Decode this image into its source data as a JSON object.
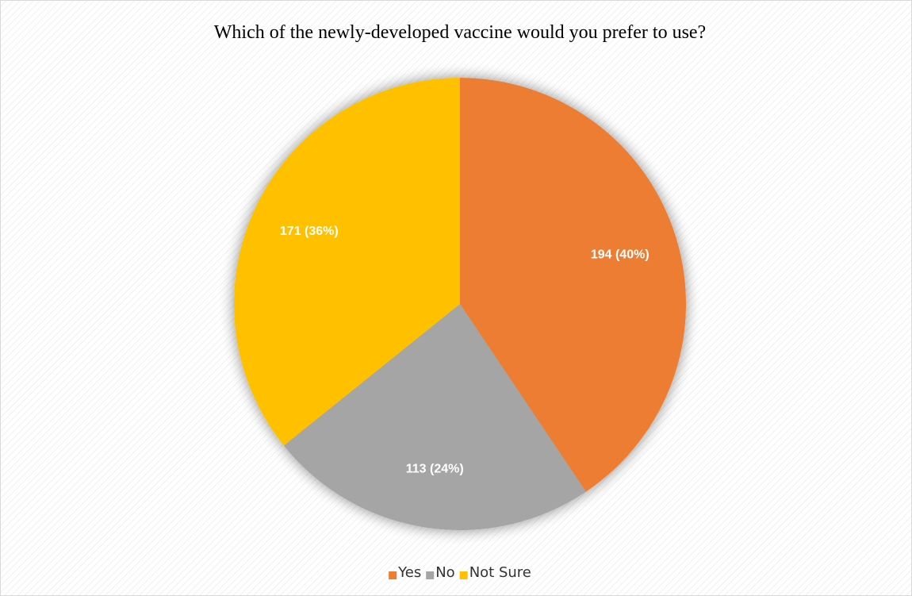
{
  "chart_data": {
    "type": "pie",
    "title": "Which of the newly-developed vaccine would you prefer to use?",
    "categories": [
      "Yes",
      "No",
      "Not Sure"
    ],
    "values": [
      194,
      113,
      171
    ],
    "value_labels": [
      "194 (40%)",
      "113 (24%)",
      "171 (36%)"
    ],
    "colors": [
      "#ED7D31",
      "#A5A5A5",
      "#FFC000"
    ],
    "legend": "bottom"
  }
}
